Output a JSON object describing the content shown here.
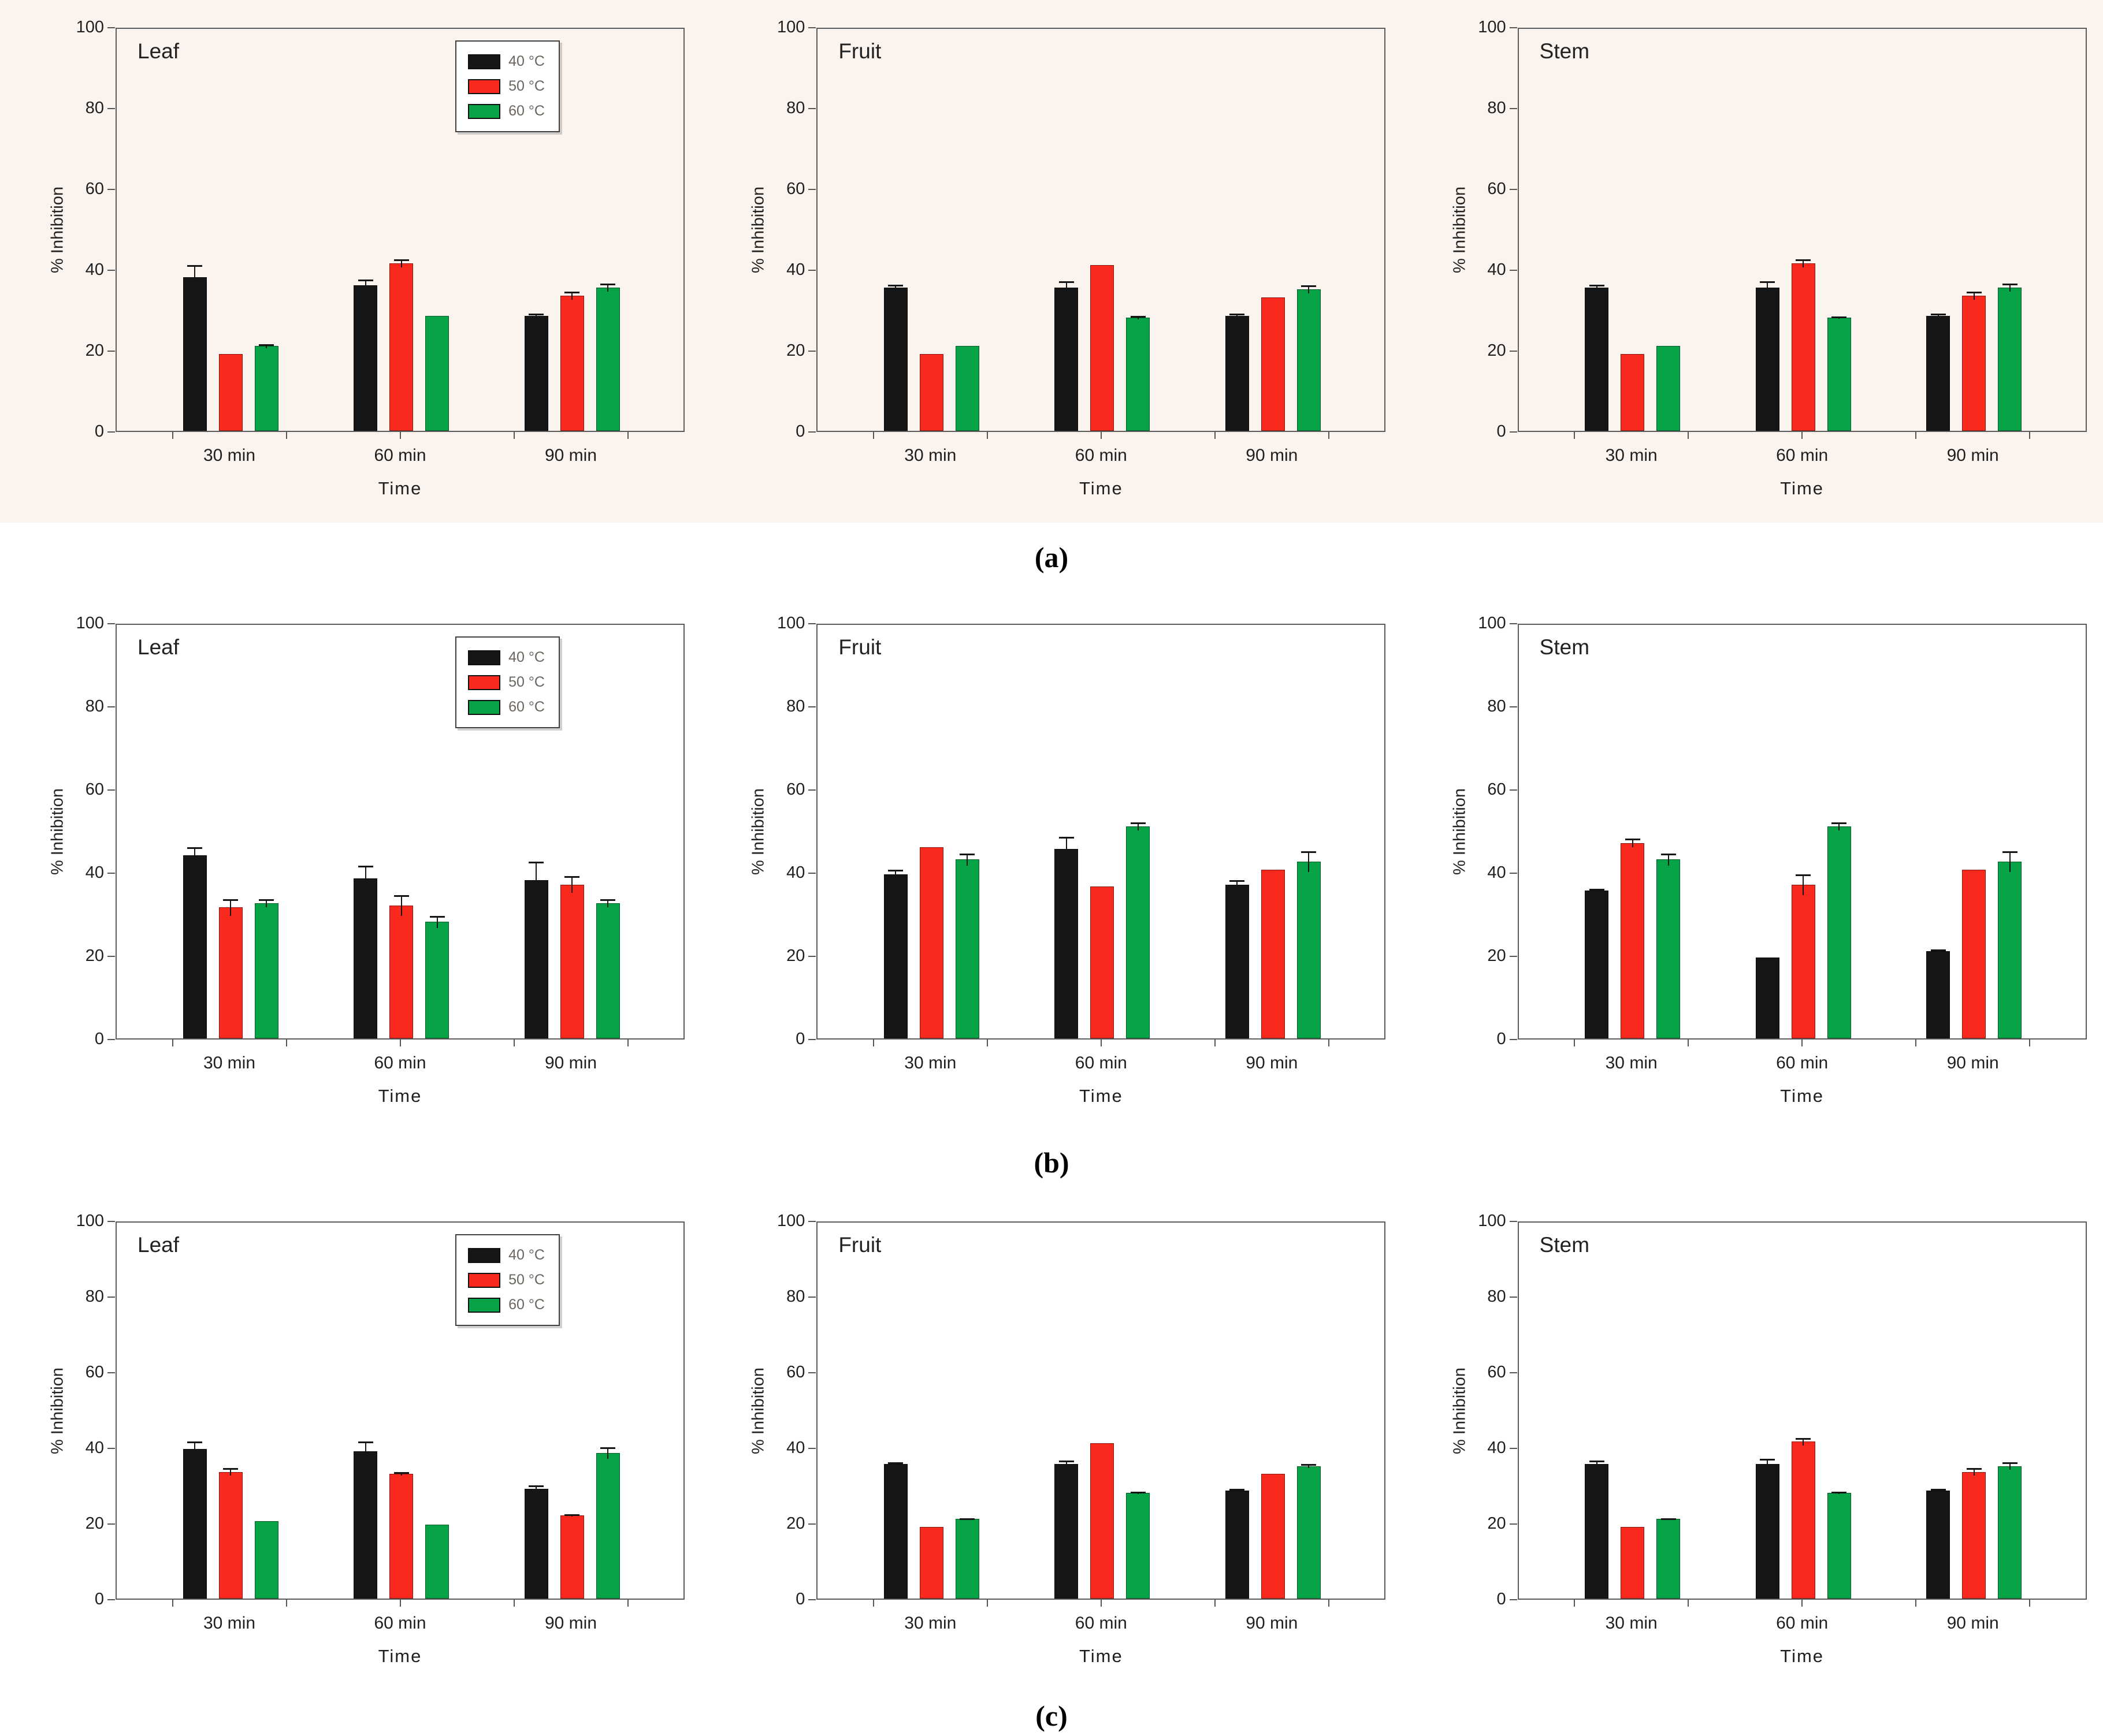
{
  "figure": {
    "captions": [
      "(a)",
      "(b)",
      "(c)"
    ],
    "accent_colors": {
      "series_40C": "#161616",
      "series_50C": "#fa291d",
      "series_60C": "#07a447"
    },
    "legend_items": [
      "40 °C",
      "50 °C",
      "60 °C"
    ]
  },
  "chart_data": [
    {
      "type": "bar",
      "row": 0,
      "title": "Leaf",
      "legend": true,
      "xlabel": "Time",
      "ylabel": "% Inhibition",
      "ylim": [
        0,
        100
      ],
      "yticks": [
        0,
        20,
        40,
        60,
        80,
        100
      ],
      "grid": false,
      "legend_position": "top-right",
      "categories": [
        "30 min",
        "60 min",
        "90 min"
      ],
      "series": [
        {
          "name": "40 °C",
          "color": "#161616",
          "values": [
            38,
            36,
            28.5
          ],
          "errors": [
            3,
            1.5,
            0.5
          ]
        },
        {
          "name": "50 °C",
          "color": "#fa291d",
          "values": [
            19,
            41.5,
            33.5
          ],
          "errors": [
            0,
            1,
            1
          ]
        },
        {
          "name": "60 °C",
          "color": "#07a447",
          "values": [
            21,
            28.5,
            35.5
          ],
          "errors": [
            0.5,
            0,
            1
          ]
        }
      ]
    },
    {
      "type": "bar",
      "row": 0,
      "title": "Fruit",
      "legend": false,
      "xlabel": "Time",
      "ylabel": "% Inhibition",
      "ylim": [
        0,
        100
      ],
      "yticks": [
        0,
        20,
        40,
        60,
        80,
        100
      ],
      "grid": false,
      "categories": [
        "30 min",
        "60 min",
        "90 min"
      ],
      "series": [
        {
          "name": "40 °C",
          "color": "#161616",
          "values": [
            35.5,
            35.5,
            28.5
          ],
          "errors": [
            0.7,
            1.5,
            0.5
          ]
        },
        {
          "name": "50 °C",
          "color": "#fa291d",
          "values": [
            19,
            41,
            33
          ],
          "errors": [
            0,
            0,
            0
          ]
        },
        {
          "name": "60 °C",
          "color": "#07a447",
          "values": [
            21,
            28,
            35
          ],
          "errors": [
            0,
            0.4,
            1
          ]
        }
      ]
    },
    {
      "type": "bar",
      "row": 0,
      "title": "Stem",
      "legend": false,
      "xlabel": "Time",
      "ylabel": "% Inhibition",
      "ylim": [
        0,
        100
      ],
      "yticks": [
        0,
        20,
        40,
        60,
        80,
        100
      ],
      "grid": false,
      "categories": [
        "30 min",
        "60 min",
        "90 min"
      ],
      "series": [
        {
          "name": "40 °C",
          "color": "#161616",
          "values": [
            35.5,
            35.5,
            28.5
          ],
          "errors": [
            0.6,
            1.5,
            0.5
          ]
        },
        {
          "name": "50 °C",
          "color": "#fa291d",
          "values": [
            19,
            41.5,
            33.5
          ],
          "errors": [
            0,
            1,
            1
          ]
        },
        {
          "name": "60 °C",
          "color": "#07a447",
          "values": [
            21,
            28,
            35.5
          ],
          "errors": [
            0,
            0.3,
            1
          ]
        }
      ]
    },
    {
      "type": "bar",
      "row": 1,
      "title": "Leaf",
      "legend": true,
      "xlabel": "Time",
      "ylabel": "% Inhibition",
      "ylim": [
        0,
        100
      ],
      "yticks": [
        0,
        20,
        40,
        60,
        80,
        100
      ],
      "grid": false,
      "legend_position": "top-right",
      "categories": [
        "30 min",
        "60 min",
        "90 min"
      ],
      "series": [
        {
          "name": "40 °C",
          "color": "#161616",
          "values": [
            44,
            38.5,
            38
          ],
          "errors": [
            2,
            3,
            4.5
          ]
        },
        {
          "name": "50 °C",
          "color": "#fa291d",
          "values": [
            31.5,
            32,
            37
          ],
          "errors": [
            2,
            2.5,
            2
          ]
        },
        {
          "name": "60 °C",
          "color": "#07a447",
          "values": [
            32.5,
            28,
            32.5
          ],
          "errors": [
            1,
            1.5,
            1
          ]
        }
      ]
    },
    {
      "type": "bar",
      "row": 1,
      "title": "Fruit",
      "legend": false,
      "xlabel": "Time",
      "ylabel": "% Inhibition",
      "ylim": [
        0,
        100
      ],
      "yticks": [
        0,
        20,
        40,
        60,
        80,
        100
      ],
      "grid": false,
      "categories": [
        "30 min",
        "60 min",
        "90 min"
      ],
      "series": [
        {
          "name": "40 °C",
          "color": "#161616",
          "values": [
            39.5,
            45.5,
            37
          ],
          "errors": [
            1,
            3,
            1
          ]
        },
        {
          "name": "50 °C",
          "color": "#fa291d",
          "values": [
            46,
            36.5,
            40.5
          ],
          "errors": [
            0,
            0,
            0
          ]
        },
        {
          "name": "60 °C",
          "color": "#07a447",
          "values": [
            43,
            51,
            42.5
          ],
          "errors": [
            1.5,
            1,
            2.5
          ]
        }
      ]
    },
    {
      "type": "bar",
      "row": 1,
      "title": "Stem",
      "legend": false,
      "xlabel": "Time",
      "ylabel": "% Inhibition",
      "ylim": [
        0,
        100
      ],
      "yticks": [
        0,
        20,
        40,
        60,
        80,
        100
      ],
      "grid": false,
      "categories": [
        "30 min",
        "60 min",
        "90 min"
      ],
      "series": [
        {
          "name": "40 °C",
          "color": "#161616",
          "values": [
            35.5,
            19.5,
            21
          ],
          "errors": [
            0.5,
            0,
            0.4
          ]
        },
        {
          "name": "50 °C",
          "color": "#fa291d",
          "values": [
            47,
            37,
            40.5
          ],
          "errors": [
            1,
            2.5,
            0
          ]
        },
        {
          "name": "60 °C",
          "color": "#07a447",
          "values": [
            43,
            51,
            42.5
          ],
          "errors": [
            1.5,
            1,
            2.5
          ]
        }
      ]
    },
    {
      "type": "bar",
      "row": 2,
      "title": "Leaf",
      "legend": true,
      "xlabel": "Time",
      "ylabel": "% Inhibition",
      "ylim": [
        0,
        100
      ],
      "yticks": [
        0,
        20,
        40,
        60,
        80,
        100
      ],
      "grid": false,
      "legend_position": "top-right",
      "categories": [
        "30 min",
        "60 min",
        "90 min"
      ],
      "series": [
        {
          "name": "40 °C",
          "color": "#161616",
          "values": [
            39.5,
            39,
            29
          ],
          "errors": [
            2,
            2.5,
            1
          ]
        },
        {
          "name": "50 °C",
          "color": "#fa291d",
          "values": [
            33.5,
            33,
            22
          ],
          "errors": [
            1,
            0.5,
            0.3
          ]
        },
        {
          "name": "60 °C",
          "color": "#07a447",
          "values": [
            20.5,
            19.5,
            38.5
          ],
          "errors": [
            0,
            0,
            1.5
          ]
        }
      ]
    },
    {
      "type": "bar",
      "row": 2,
      "title": "Fruit",
      "legend": false,
      "xlabel": "Time",
      "ylabel": "% Inhibition",
      "ylim": [
        0,
        100
      ],
      "yticks": [
        0,
        20,
        40,
        60,
        80,
        100
      ],
      "grid": false,
      "categories": [
        "30 min",
        "60 min",
        "90 min"
      ],
      "series": [
        {
          "name": "40 °C",
          "color": "#161616",
          "values": [
            35.5,
            35.5,
            28.5
          ],
          "errors": [
            0.5,
            1,
            0.5
          ]
        },
        {
          "name": "50 °C",
          "color": "#fa291d",
          "values": [
            19,
            41,
            33
          ],
          "errors": [
            0,
            0,
            0
          ]
        },
        {
          "name": "60 °C",
          "color": "#07a447",
          "values": [
            21,
            28,
            35
          ],
          "errors": [
            0.3,
            0.3,
            0.5
          ]
        }
      ]
    },
    {
      "type": "bar",
      "row": 2,
      "title": "Stem",
      "legend": false,
      "xlabel": "Time",
      "ylabel": "% Inhibition",
      "ylim": [
        0,
        100
      ],
      "yticks": [
        0,
        20,
        40,
        60,
        80,
        100
      ],
      "grid": false,
      "categories": [
        "30 min",
        "60 min",
        "90 min"
      ],
      "series": [
        {
          "name": "40 °C",
          "color": "#161616",
          "values": [
            35.5,
            35.5,
            28.5
          ],
          "errors": [
            1,
            1.5,
            0.5
          ]
        },
        {
          "name": "50 °C",
          "color": "#fa291d",
          "values": [
            19,
            41.5,
            33.5
          ],
          "errors": [
            0,
            1,
            1
          ]
        },
        {
          "name": "60 °C",
          "color": "#07a447",
          "values": [
            21,
            28,
            35
          ],
          "errors": [
            0.3,
            0.3,
            1
          ]
        }
      ]
    }
  ]
}
